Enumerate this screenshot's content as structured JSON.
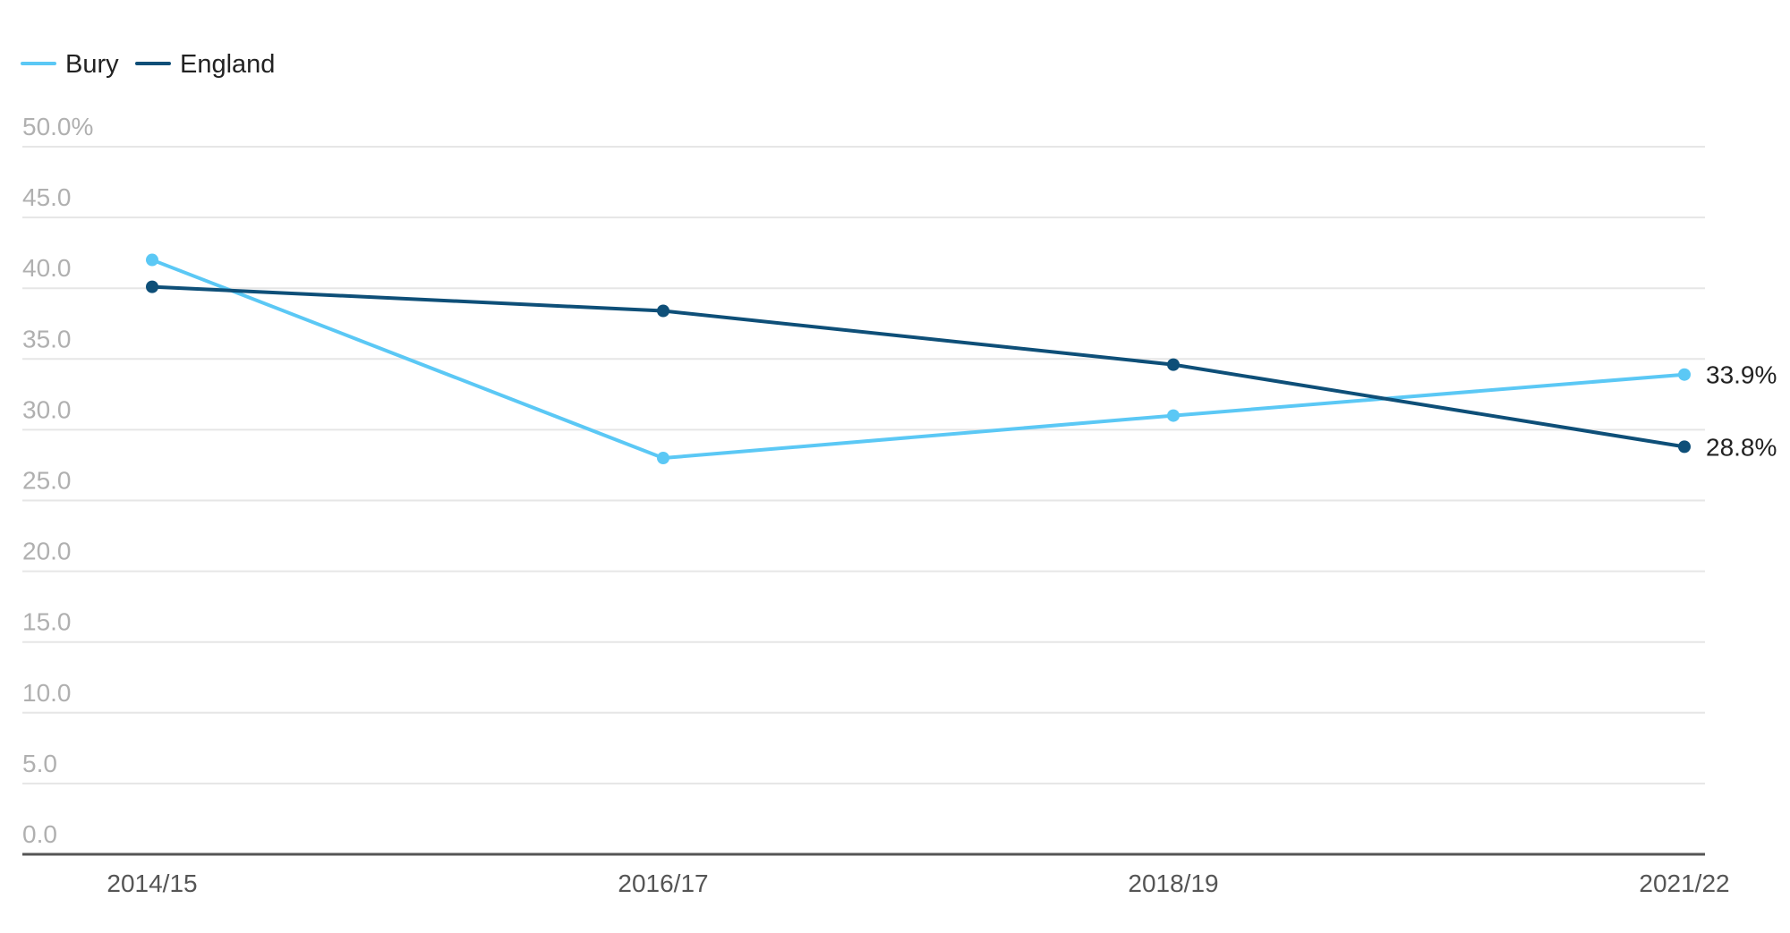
{
  "chart_data": {
    "type": "line",
    "x": [
      "2014/15",
      "2016/17",
      "2018/19",
      "2021/22"
    ],
    "series": [
      {
        "name": "Bury",
        "color": "#5bc8f5",
        "values": [
          42.0,
          28.0,
          31.0,
          33.9
        ],
        "end_label": "33.9%"
      },
      {
        "name": "England",
        "color": "#0e4f78",
        "values": [
          40.1,
          38.4,
          34.6,
          28.8
        ],
        "end_label": "28.8%"
      }
    ],
    "ylim": [
      0,
      50
    ],
    "yticks": [
      "0.0",
      "5.0",
      "10.0",
      "15.0",
      "20.0",
      "25.0",
      "30.0",
      "35.0",
      "40.0",
      "45.0",
      "50.0%"
    ],
    "grid": true,
    "legend": "top-left",
    "colors": {
      "grid": "#e6e6e6",
      "axis": "#555555"
    }
  }
}
